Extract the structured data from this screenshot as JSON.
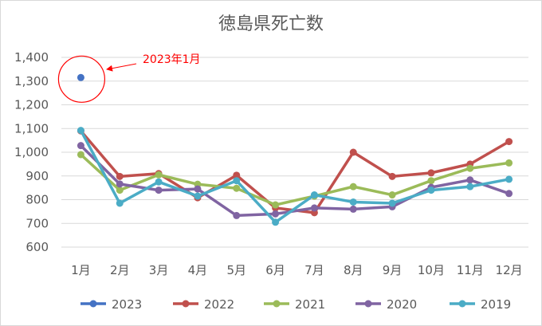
{
  "chart_data": {
    "type": "line",
    "title": "徳島県死亡数",
    "xlabel": "",
    "ylabel": "",
    "categories": [
      "1月",
      "2月",
      "3月",
      "4月",
      "5月",
      "6月",
      "7月",
      "8月",
      "9月",
      "10月",
      "11月",
      "12月"
    ],
    "ylim": [
      600,
      1400
    ],
    "yticks": [
      600,
      700,
      800,
      900,
      1000,
      1100,
      1200,
      1300,
      1400
    ],
    "ytick_labels": [
      "600",
      "700",
      "800",
      "900",
      "1,000",
      "1,100",
      "1,200",
      "1,300",
      "1,400"
    ],
    "grid": true,
    "legend_position": "bottom",
    "series": [
      {
        "name": "2023",
        "color": "#4472c4",
        "values": [
          1315,
          null,
          null,
          null,
          null,
          null,
          null,
          null,
          null,
          null,
          null,
          null
        ]
      },
      {
        "name": "2022",
        "color": "#c0504d",
        "values": [
          1090,
          898,
          910,
          808,
          903,
          765,
          745,
          1000,
          898,
          913,
          950,
          1045
        ]
      },
      {
        "name": "2021",
        "color": "#9bbb59",
        "values": [
          990,
          840,
          905,
          865,
          848,
          778,
          815,
          855,
          820,
          880,
          932,
          955
        ]
      },
      {
        "name": "2020",
        "color": "#8064a2",
        "values": [
          1028,
          866,
          840,
          845,
          733,
          740,
          765,
          760,
          770,
          852,
          883,
          826
        ]
      },
      {
        "name": "2019",
        "color": "#4bacc6",
        "values": [
          1092,
          785,
          875,
          815,
          880,
          705,
          820,
          790,
          785,
          840,
          855,
          886
        ]
      }
    ],
    "annotations": [
      {
        "text": "2023年1月",
        "color": "#ff0000"
      }
    ]
  }
}
